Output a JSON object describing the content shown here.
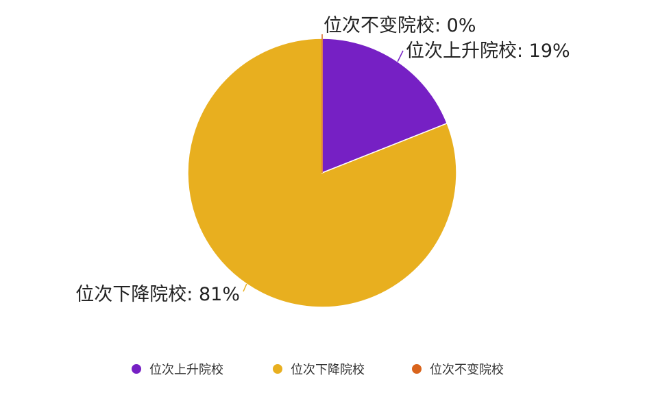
{
  "chart_data": {
    "type": "pie",
    "title": "",
    "start_angle_deg": 0,
    "direction": "clockwise",
    "slices": [
      {
        "name": "位次上升院校",
        "value": 19,
        "label": "位次上升院校: 19%",
        "color": "#7620C4"
      },
      {
        "name": "位次下降院校",
        "value": 81,
        "label": "位次下降院校: 81%",
        "color": "#E8AF1F"
      },
      {
        "name": "位次不变院校",
        "value": 0,
        "label": "位次不变院校: 0%",
        "color": "#D9641C"
      }
    ],
    "legend": {
      "position": "bottom",
      "entries": [
        "位次上升院校",
        "位次下降院校",
        "位次不变院校"
      ]
    }
  }
}
